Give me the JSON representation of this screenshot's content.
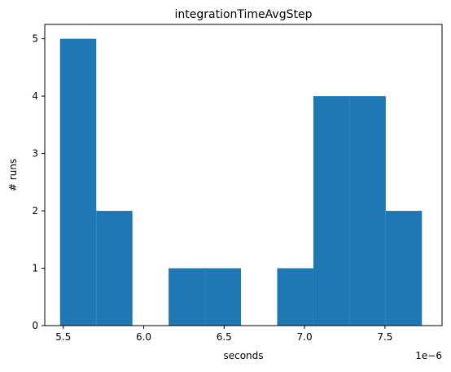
{
  "chart_data": {
    "type": "bar",
    "title": "integrationTimeAvgStep",
    "xlabel": "seconds",
    "ylabel": "# runs",
    "offset_label": "1e−6",
    "x_scale": 1e-06,
    "xlim": [
      5.385,
      7.855
    ],
    "ylim": [
      0,
      5.25
    ],
    "grid": false,
    "legend": "none",
    "bar_color": "#1f77b4",
    "bins": [
      {
        "x0": 5.48,
        "x1": 5.705,
        "count": 5
      },
      {
        "x0": 5.705,
        "x1": 5.93,
        "count": 2
      },
      {
        "x0": 5.93,
        "x1": 6.155,
        "count": 0
      },
      {
        "x0": 6.155,
        "x1": 6.38,
        "count": 1
      },
      {
        "x0": 6.38,
        "x1": 6.605,
        "count": 1
      },
      {
        "x0": 6.605,
        "x1": 6.83,
        "count": 0
      },
      {
        "x0": 6.83,
        "x1": 7.055,
        "count": 1
      },
      {
        "x0": 7.055,
        "x1": 7.28,
        "count": 4
      },
      {
        "x0": 7.28,
        "x1": 7.505,
        "count": 4
      },
      {
        "x0": 7.505,
        "x1": 7.73,
        "count": 2
      }
    ],
    "xticks": [
      {
        "value": 5.5,
        "label": "5.5"
      },
      {
        "value": 6.0,
        "label": "6.0"
      },
      {
        "value": 6.5,
        "label": "6.5"
      },
      {
        "value": 7.0,
        "label": "7.0"
      },
      {
        "value": 7.5,
        "label": "7.5"
      }
    ],
    "yticks": [
      {
        "value": 0,
        "label": "0"
      },
      {
        "value": 1,
        "label": "1"
      },
      {
        "value": 2,
        "label": "2"
      },
      {
        "value": 3,
        "label": "3"
      },
      {
        "value": 4,
        "label": "4"
      },
      {
        "value": 5,
        "label": "5"
      }
    ]
  }
}
